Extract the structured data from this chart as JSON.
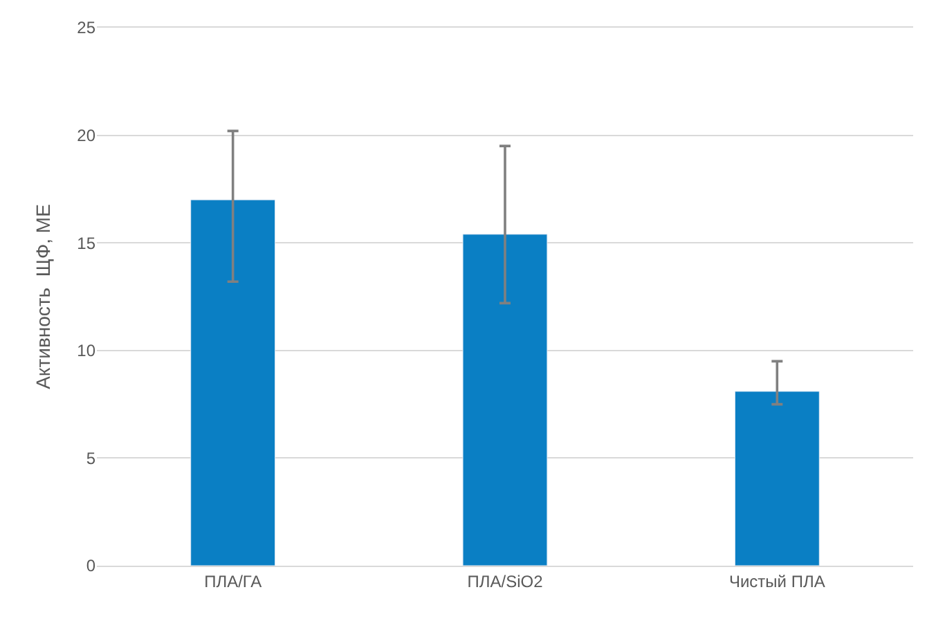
{
  "chart_data": {
    "type": "bar",
    "ylabel": "Активность  ЩФ, МЕ",
    "categories": [
      "ПЛА/ГА",
      "ПЛА/SiO2",
      "Чистый ПЛА"
    ],
    "values": [
      17.0,
      15.4,
      8.1
    ],
    "errors": [
      [
        13.2,
        20.2
      ],
      [
        12.2,
        19.5
      ],
      [
        7.5,
        9.5
      ]
    ],
    "color": "#0a7fc4",
    "ylim": [
      0,
      25
    ],
    "yticks": [
      0,
      5,
      10,
      15,
      20,
      25
    ],
    "grid": "y"
  }
}
